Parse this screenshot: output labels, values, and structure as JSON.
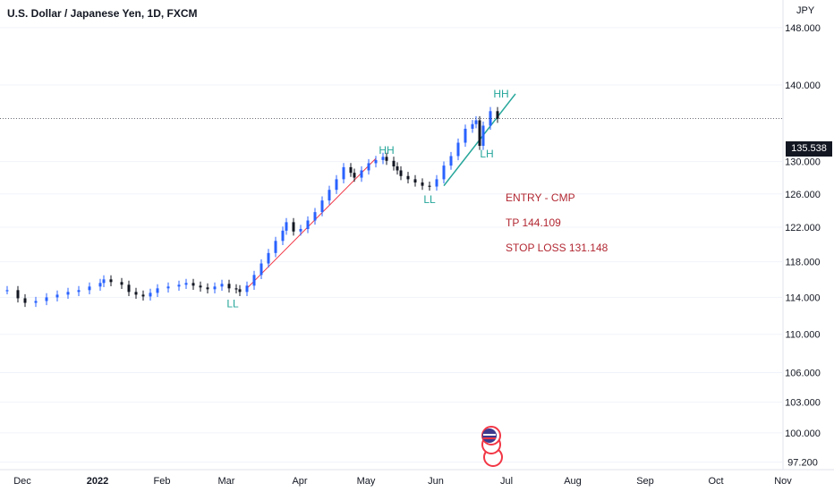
{
  "header": {
    "title": "U.S. Dollar / Japanese Yen, 1D, FXCM"
  },
  "price_axis": {
    "currency": "JPY",
    "last_price": "135.538"
  },
  "annotations": {
    "labels": [
      "LL",
      "HH",
      "LL",
      "HH",
      "LH"
    ],
    "entry": "ENTRY - CMP",
    "tp": "TP 144.109",
    "sl": "STOP LOSS 131.148"
  },
  "colors": {
    "up": "#2962ff",
    "down": "#131722",
    "trend": "#26a69a",
    "annotation": "#b22833",
    "red_line": "#f23645"
  },
  "chart_data": {
    "type": "line",
    "title": "U.S. Dollar / Japanese Yen, 1D, FXCM",
    "y_scale": "log",
    "ylim": [
      96.5,
      152
    ],
    "y_ticks": [
      "97.200",
      "100.000",
      "103.000",
      "106.000",
      "110.000",
      "114.000",
      "118.000",
      "122.000",
      "126.000",
      "130.000",
      "140.000",
      "148.000"
    ],
    "x_ticks": [
      "Dec",
      "2022",
      "Feb",
      "Mar",
      "Apr",
      "May",
      "Jun",
      "Jul",
      "Aug",
      "Sep",
      "Oct",
      "Nov"
    ],
    "series": [
      {
        "values": [
          [
            0,
            114.8
          ],
          [
            3,
            113.9
          ],
          [
            5,
            113.4
          ],
          [
            8,
            113.6
          ],
          [
            11,
            114.0
          ],
          [
            14,
            114.3
          ],
          [
            17,
            114.6
          ],
          [
            20,
            114.8
          ],
          [
            23,
            115.2
          ],
          [
            26,
            115.6
          ],
          [
            27,
            116.0
          ],
          [
            29,
            115.7
          ],
          [
            32,
            115.4
          ],
          [
            34,
            114.6
          ],
          [
            36,
            114.3
          ],
          [
            38,
            114.1
          ],
          [
            40,
            114.5
          ],
          [
            42,
            115.0
          ],
          [
            45,
            115.2
          ],
          [
            48,
            115.4
          ],
          [
            50,
            115.6
          ],
          [
            52,
            115.3
          ],
          [
            54,
            115.1
          ],
          [
            56,
            114.9
          ],
          [
            58,
            115.2
          ],
          [
            60,
            115.5
          ],
          [
            62,
            115.0
          ],
          [
            64,
            114.9
          ],
          [
            65,
            114.6
          ],
          [
            67,
            115.3
          ],
          [
            69,
            116.5
          ],
          [
            71,
            117.8
          ],
          [
            73,
            119.0
          ],
          [
            75,
            120.4
          ],
          [
            77,
            121.6
          ],
          [
            78,
            122.6
          ],
          [
            80,
            121.5
          ],
          [
            82,
            121.8
          ],
          [
            84,
            122.8
          ],
          [
            86,
            123.8
          ],
          [
            88,
            125.2
          ],
          [
            90,
            126.5
          ],
          [
            92,
            127.8
          ],
          [
            94,
            129.3
          ],
          [
            96,
            128.6
          ],
          [
            97,
            128.0
          ],
          [
            99,
            128.9
          ],
          [
            101,
            129.8
          ],
          [
            103,
            130.2
          ],
          [
            105,
            130.6
          ],
          [
            106,
            130.1
          ],
          [
            108,
            129.4
          ],
          [
            109,
            128.9
          ],
          [
            110,
            128.2
          ],
          [
            112,
            127.8
          ],
          [
            114,
            127.4
          ],
          [
            116,
            127.0
          ],
          [
            118,
            126.9
          ],
          [
            120,
            127.8
          ],
          [
            122,
            129.5
          ],
          [
            124,
            130.7
          ],
          [
            126,
            132.4
          ],
          [
            128,
            134.2
          ],
          [
            130,
            134.8
          ],
          [
            131,
            135.3
          ],
          [
            132,
            132.0
          ],
          [
            133,
            134.6
          ],
          [
            135,
            136.5
          ],
          [
            137,
            135.5
          ]
        ]
      }
    ]
  }
}
